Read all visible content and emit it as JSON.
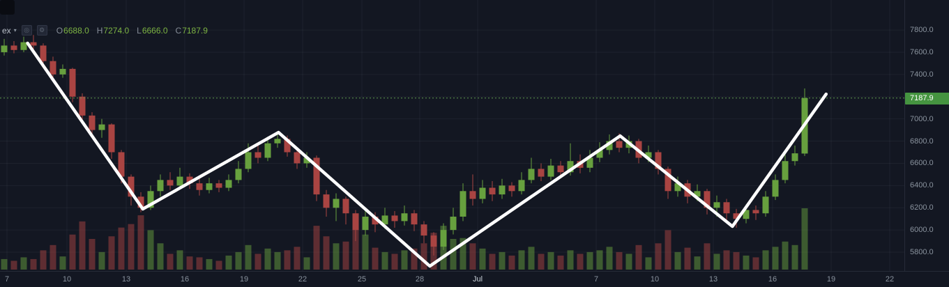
{
  "header": {
    "symbol_text": "ex",
    "caret": "▾"
  },
  "legend": {
    "ohlc": [
      {
        "label": "O",
        "value": "6688.0"
      },
      {
        "label": "H",
        "value": "7274.0"
      },
      {
        "label": "L",
        "value": "6666.0"
      },
      {
        "label": "C",
        "value": "7187.9"
      }
    ]
  },
  "toolbar": {
    "camera_icon": "camera"
  },
  "price_axis": {
    "current_price_label": "7187.9",
    "ticks": [
      {
        "text": "7800.0",
        "price": 7800
      },
      {
        "text": "7600.0",
        "price": 7600
      },
      {
        "text": "7400.0",
        "price": 7400
      },
      {
        "text": "7000.0",
        "price": 7000
      },
      {
        "text": "6800.0",
        "price": 6800
      },
      {
        "text": "6600.0",
        "price": 6600
      },
      {
        "text": "6400.0",
        "price": 6400
      },
      {
        "text": "6200.0",
        "price": 6200
      },
      {
        "text": "6000.0",
        "price": 6000
      },
      {
        "text": "5800.0",
        "price": 5800
      }
    ]
  },
  "time_axis": {
    "labels": [
      {
        "text": "7",
        "x": 10
      },
      {
        "text": "10",
        "x": 96
      },
      {
        "text": "13",
        "x": 181
      },
      {
        "text": "16",
        "x": 265
      },
      {
        "text": "19",
        "x": 350
      },
      {
        "text": "22",
        "x": 434
      },
      {
        "text": "25",
        "x": 519
      },
      {
        "text": "28",
        "x": 602
      },
      {
        "text": "Jul",
        "x": 685,
        "emphasis": true
      },
      {
        "text": "7",
        "x": 855
      },
      {
        "text": "10",
        "x": 939
      },
      {
        "text": "13",
        "x": 1023
      },
      {
        "text": "16",
        "x": 1108
      },
      {
        "text": "19",
        "x": 1192
      },
      {
        "text": "22",
        "x": 1276
      }
    ]
  },
  "chart_data": {
    "type": "candlestick",
    "title": "",
    "current_price": 7187.9,
    "last_candle_ohlc": {
      "o": 6688.0,
      "h": 7274.0,
      "l": 6666.0,
      "c": 7187.9
    },
    "ylim": [
      5631,
      8070
    ],
    "price_grid_step": 200,
    "volume_max": 70,
    "candles": [
      [
        7600,
        7720,
        7570,
        7660,
        12
      ],
      [
        7660,
        7700,
        7590,
        7620,
        10
      ],
      [
        7620,
        7740,
        7600,
        7690,
        14
      ],
      [
        7690,
        7755,
        7630,
        7660,
        12
      ],
      [
        7660,
        7680,
        7480,
        7520,
        22
      ],
      [
        7520,
        7560,
        7360,
        7400,
        28
      ],
      [
        7400,
        7490,
        7370,
        7450,
        15
      ],
      [
        7450,
        7460,
        7150,
        7200,
        40
      ],
      [
        7200,
        7230,
        6980,
        7030,
        55
      ],
      [
        7030,
        7060,
        6850,
        6900,
        35
      ],
      [
        6900,
        7000,
        6830,
        6950,
        20
      ],
      [
        6950,
        6960,
        6640,
        6700,
        38
      ],
      [
        6700,
        6720,
        6420,
        6480,
        48
      ],
      [
        6480,
        6500,
        6220,
        6300,
        52
      ],
      [
        6300,
        6340,
        6160,
        6200,
        62
      ],
      [
        6200,
        6400,
        6180,
        6350,
        45
      ],
      [
        6350,
        6500,
        6300,
        6450,
        30
      ],
      [
        6450,
        6520,
        6360,
        6400,
        18
      ],
      [
        6400,
        6560,
        6380,
        6480,
        22
      ],
      [
        6480,
        6510,
        6370,
        6420,
        15
      ],
      [
        6420,
        6460,
        6310,
        6360,
        14
      ],
      [
        6360,
        6470,
        6330,
        6420,
        12
      ],
      [
        6420,
        6450,
        6340,
        6380,
        10
      ],
      [
        6380,
        6500,
        6350,
        6450,
        16
      ],
      [
        6450,
        6620,
        6420,
        6550,
        20
      ],
      [
        6550,
        6780,
        6520,
        6700,
        28
      ],
      [
        6700,
        6760,
        6600,
        6650,
        18
      ],
      [
        6650,
        6840,
        6620,
        6780,
        24
      ],
      [
        6780,
        6880,
        6740,
        6820,
        20
      ],
      [
        6820,
        6850,
        6660,
        6700,
        22
      ],
      [
        6700,
        6730,
        6550,
        6600,
        26
      ],
      [
        6600,
        6700,
        6560,
        6650,
        14
      ],
      [
        6650,
        6670,
        6260,
        6320,
        50
      ],
      [
        6320,
        6360,
        6120,
        6200,
        38
      ],
      [
        6200,
        6330,
        6080,
        6280,
        30
      ],
      [
        6280,
        6300,
        6050,
        6150,
        32
      ],
      [
        6150,
        6180,
        5900,
        6000,
        58
      ],
      [
        6000,
        6170,
        5950,
        6120,
        40
      ],
      [
        6120,
        6160,
        5980,
        6050,
        25
      ],
      [
        6050,
        6200,
        6010,
        6130,
        20
      ],
      [
        6130,
        6170,
        6020,
        6080,
        18
      ],
      [
        6080,
        6220,
        6040,
        6150,
        22
      ],
      [
        6150,
        6180,
        5990,
        6050,
        24
      ],
      [
        6050,
        6080,
        5880,
        5950,
        30
      ],
      [
        5950,
        5980,
        5770,
        5850,
        42
      ],
      [
        5850,
        6060,
        5820,
        6000,
        50
      ],
      [
        6000,
        6200,
        5960,
        6120,
        35
      ],
      [
        6120,
        6420,
        6080,
        6350,
        36
      ],
      [
        6350,
        6500,
        6220,
        6280,
        30
      ],
      [
        6280,
        6450,
        6240,
        6380,
        24
      ],
      [
        6380,
        6440,
        6260,
        6320,
        18
      ],
      [
        6320,
        6460,
        6280,
        6400,
        20
      ],
      [
        6400,
        6430,
        6300,
        6350,
        16
      ],
      [
        6350,
        6520,
        6320,
        6450,
        22
      ],
      [
        6450,
        6650,
        6420,
        6550,
        26
      ],
      [
        6550,
        6600,
        6440,
        6480,
        18
      ],
      [
        6480,
        6640,
        6450,
        6580,
        20
      ],
      [
        6580,
        6620,
        6470,
        6520,
        16
      ],
      [
        6520,
        6780,
        6490,
        6620,
        22
      ],
      [
        6620,
        6680,
        6510,
        6560,
        18
      ],
      [
        6560,
        6720,
        6520,
        6650,
        20
      ],
      [
        6650,
        6790,
        6610,
        6720,
        22
      ],
      [
        6720,
        6860,
        6680,
        6800,
        26
      ],
      [
        6800,
        6870,
        6700,
        6740,
        20
      ],
      [
        6740,
        6850,
        6690,
        6800,
        18
      ],
      [
        6800,
        6820,
        6600,
        6650,
        28
      ],
      [
        6650,
        6760,
        6610,
        6700,
        14
      ],
      [
        6700,
        6720,
        6500,
        6550,
        30
      ],
      [
        6550,
        6570,
        6280,
        6350,
        45
      ],
      [
        6350,
        6480,
        6300,
        6420,
        20
      ],
      [
        6420,
        6450,
        6240,
        6300,
        25
      ],
      [
        6300,
        6410,
        6260,
        6350,
        15
      ],
      [
        6350,
        6370,
        6140,
        6200,
        30
      ],
      [
        6200,
        6310,
        6120,
        6250,
        18
      ],
      [
        6250,
        6280,
        6080,
        6150,
        22
      ],
      [
        6150,
        6190,
        6020,
        6100,
        20
      ],
      [
        6100,
        6230,
        6060,
        6180,
        16
      ],
      [
        6180,
        6220,
        6090,
        6150,
        14
      ],
      [
        6150,
        6350,
        6120,
        6300,
        22
      ],
      [
        6300,
        6500,
        6270,
        6450,
        26
      ],
      [
        6450,
        6680,
        6420,
        6620,
        32
      ],
      [
        6620,
        6760,
        6580,
        6690,
        28
      ],
      [
        6688,
        7274,
        6666,
        7187.9,
        70
      ]
    ],
    "trend_line": {
      "color": "#ffffff",
      "width": 4.5,
      "pivots": [
        {
          "i": 2.4,
          "p": 7681
        },
        {
          "i": 14.2,
          "p": 6189
        },
        {
          "i": 28.1,
          "p": 6878
        },
        {
          "i": 43.6,
          "p": 5675
        },
        {
          "i": 63.1,
          "p": 6847
        },
        {
          "i": 74.6,
          "p": 6032
        },
        {
          "i": 84.2,
          "p": 7223
        }
      ]
    },
    "colors": {
      "background": "#131722",
      "up": "#67a03e",
      "down": "#a94442",
      "volume_up": "rgba(103,160,62,0.5)",
      "volume_down": "rgba(169,68,66,0.5)",
      "grid": "rgba(151,164,184,0.08)",
      "price_line": "#5f9a4f",
      "badge_bg": "#459440",
      "badge_text": "#ffffff"
    }
  }
}
